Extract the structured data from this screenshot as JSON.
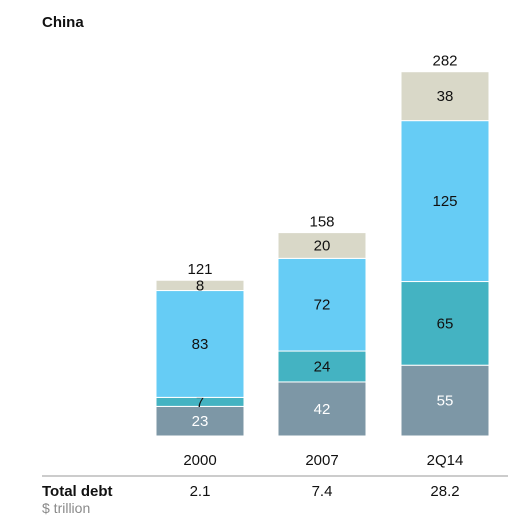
{
  "chart_data": {
    "type": "bar",
    "stacked": true,
    "title": "China",
    "categories": [
      "2000",
      "2007",
      "2Q14"
    ],
    "series": [
      {
        "values": [
          23,
          42,
          55
        ],
        "color": "#7d97a6",
        "label_color": "#ffffff"
      },
      {
        "values": [
          7,
          24,
          65
        ],
        "color": "#44b3c2",
        "label_color": "#111111"
      },
      {
        "values": [
          83,
          72,
          125
        ],
        "color": "#66ccf5",
        "label_color": "#111111"
      },
      {
        "values": [
          8,
          20,
          38
        ],
        "color": "#d9d8c8",
        "label_color": "#111111"
      }
    ],
    "totals": [
      121,
      158,
      282
    ],
    "ylim": [
      0,
      282
    ]
  },
  "footer": {
    "label": "Total debt",
    "unit": "$ trillion",
    "values": [
      "2.1",
      "7.4",
      "28.2"
    ]
  }
}
